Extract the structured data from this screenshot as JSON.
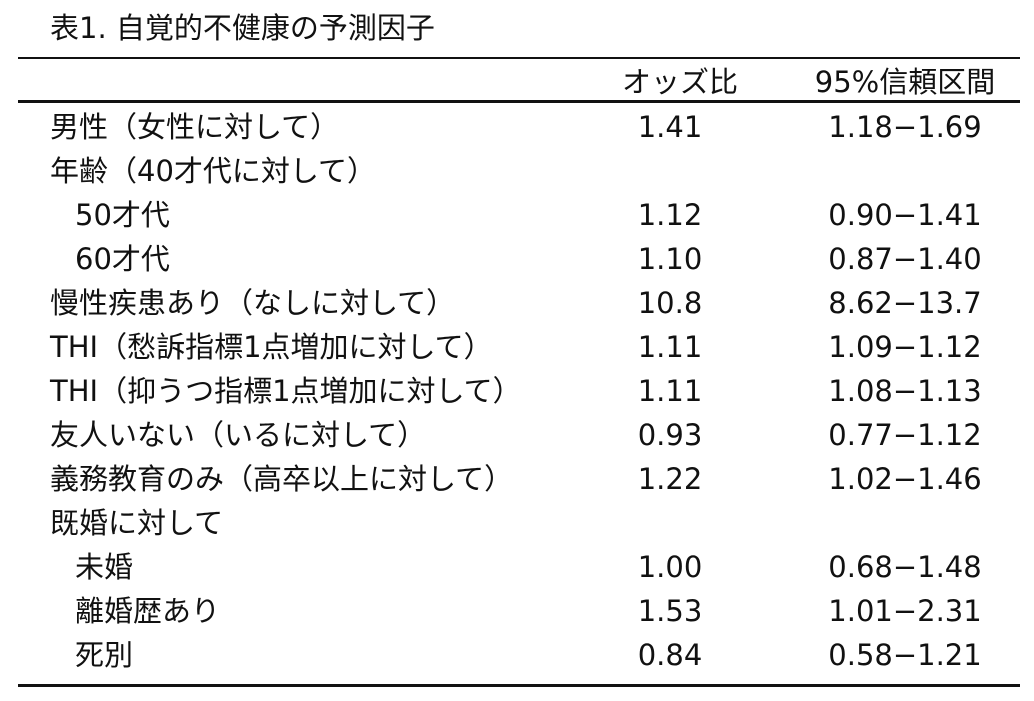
{
  "title": "表1. 自覚的不健康の予測因子",
  "table": {
    "header": [
      "オッズ比",
      "95%信頼区間"
    ],
    "rows": [
      {
        "label": "男性（女性に対して）",
        "or": "1.41",
        "ci": "1.18−1.69"
      },
      {
        "label": "年齢（40才代に対して）",
        "rows": [
          {
            "label": "50才代",
            "or": "1.12",
            "ci": "0.90−1.41"
          },
          {
            "label": "60才代",
            "or": "1.10",
            "ci": "0.87−1.40"
          }
        ]
      },
      {
        "label": "慢性疾患あり（なしに対して）",
        "or": "10.8",
        "ci": "8.62−13.7"
      },
      {
        "label": "THI（愁訴指標1点増加に対して）",
        "or": "1.11",
        "ci": "1.09−1.12"
      },
      {
        "label": "THI（抑うつ指標1点増加に対して）",
        "or": "1.11",
        "ci": "1.08−1.13"
      },
      {
        "label": "友人いない（いるに対して）",
        "or": "0.93",
        "ci": "0.77−1.12"
      },
      {
        "label": "義務教育のみ（高卒以上に対して）",
        "or": "1.22",
        "ci": "1.02−1.46"
      },
      {
        "label": "既婚に対して",
        "rows": [
          {
            "label": "未婚",
            "or": "1.00",
            "ci": "0.68−1.48"
          },
          {
            "label": "離婚歴あり",
            "or": "1.53",
            "ci": "1.01−2.31"
          },
          {
            "label": "死別",
            "or": "0.84",
            "ci": "0.58−1.21"
          }
        ]
      }
    ]
  }
}
